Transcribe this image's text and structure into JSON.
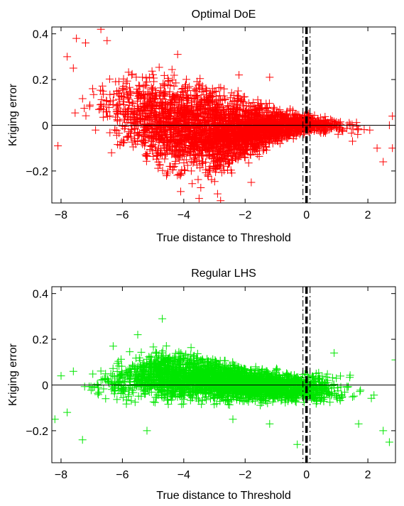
{
  "chart_data": [
    {
      "type": "scatter",
      "title": "Optimal DoE",
      "xlabel": "True distance to Threshold",
      "ylabel": "Kriging error",
      "xlim": [
        -8.3,
        2.9
      ],
      "ylim": [
        -0.34,
        0.43
      ],
      "xticks": [
        -8,
        -6,
        -4,
        -2,
        0,
        2
      ],
      "yticks": [
        -0.2,
        0,
        0.2,
        0.4
      ],
      "xtick_labels": [
        "−8",
        "−6",
        "−4",
        "−2",
        "0",
        "2"
      ],
      "ytick_labels": [
        "−0.2",
        "0",
        "0.2",
        "0.4"
      ],
      "marker": "+",
      "marker_color": "#ff0000",
      "zero_line": 0,
      "threshold_x": 0,
      "grid": false,
      "legend": "none",
      "envelope": [
        {
          "x": -8.1,
          "lo": -0.02,
          "hi": 0.06
        },
        {
          "x": -7.0,
          "lo": -0.07,
          "hi": 0.28
        },
        {
          "x": -6.0,
          "lo": -0.12,
          "hi": 0.26
        },
        {
          "x": -5.0,
          "lo": -0.2,
          "hi": 0.25
        },
        {
          "x": -4.0,
          "lo": -0.25,
          "hi": 0.24
        },
        {
          "x": -3.0,
          "lo": -0.26,
          "hi": 0.2
        },
        {
          "x": -2.0,
          "lo": -0.18,
          "hi": 0.13
        },
        {
          "x": -1.0,
          "lo": -0.09,
          "hi": 0.08
        },
        {
          "x": 0.0,
          "lo": -0.04,
          "hi": 0.06
        },
        {
          "x": 1.0,
          "lo": -0.04,
          "hi": 0.03
        },
        {
          "x": 2.0,
          "lo": -0.05,
          "hi": 0.02
        },
        {
          "x": 2.7,
          "lo": -0.07,
          "hi": 0.01
        }
      ],
      "outliers": [
        {
          "x": -6.7,
          "y": 0.42
        },
        {
          "x": -7.5,
          "y": 0.38
        },
        {
          "x": -7.8,
          "y": 0.3
        },
        {
          "x": -7.6,
          "y": 0.25
        },
        {
          "x": -6.5,
          "y": 0.37
        },
        {
          "x": -7.2,
          "y": 0.36
        },
        {
          "x": -4.2,
          "y": 0.31
        },
        {
          "x": -4.1,
          "y": -0.29
        },
        {
          "x": -3.5,
          "y": -0.32
        },
        {
          "x": -2.8,
          "y": -0.33
        },
        {
          "x": -2.9,
          "y": -0.3
        },
        {
          "x": -2.2,
          "y": 0.22
        },
        {
          "x": -1.2,
          "y": 0.21
        },
        {
          "x": -1.8,
          "y": -0.25
        },
        {
          "x": -8.1,
          "y": -0.09
        },
        {
          "x": 2.5,
          "y": -0.16
        },
        {
          "x": 2.8,
          "y": -0.1
        },
        {
          "x": 2.7,
          "y": 0.0
        },
        {
          "x": 2.3,
          "y": -0.1
        },
        {
          "x": 2.8,
          "y": 0.04
        },
        {
          "x": 1.5,
          "y": -0.07
        }
      ]
    },
    {
      "type": "scatter",
      "title": "Regular LHS",
      "xlabel": "True distance to Threshold",
      "ylabel": "Kriging error",
      "xlim": [
        -8.3,
        2.9
      ],
      "ylim": [
        -0.34,
        0.43
      ],
      "xticks": [
        -8,
        -6,
        -4,
        -2,
        0,
        2
      ],
      "yticks": [
        -0.2,
        0,
        0.2,
        0.4
      ],
      "xtick_labels": [
        "−8",
        "−6",
        "−4",
        "−2",
        "0",
        "2"
      ],
      "ytick_labels": [
        "−0.2",
        "0",
        "0.2",
        "0.4"
      ],
      "marker": "+",
      "marker_color": "#00e600",
      "zero_line": 0,
      "threshold_x": 0,
      "grid": false,
      "legend": "none",
      "envelope": [
        {
          "x": -8.1,
          "lo": -0.05,
          "hi": 0.03
        },
        {
          "x": -7.0,
          "lo": -0.09,
          "hi": 0.08
        },
        {
          "x": -6.0,
          "lo": -0.09,
          "hi": 0.13
        },
        {
          "x": -5.0,
          "lo": -0.09,
          "hi": 0.17
        },
        {
          "x": -4.0,
          "lo": -0.09,
          "hi": 0.17
        },
        {
          "x": -3.0,
          "lo": -0.08,
          "hi": 0.12
        },
        {
          "x": -2.0,
          "lo": -0.08,
          "hi": 0.09
        },
        {
          "x": -1.0,
          "lo": -0.09,
          "hi": 0.07
        },
        {
          "x": 0.0,
          "lo": -0.09,
          "hi": 0.06
        },
        {
          "x": 1.0,
          "lo": -0.1,
          "hi": 0.06
        },
        {
          "x": 2.0,
          "lo": -0.08,
          "hi": 0.05
        },
        {
          "x": 2.7,
          "lo": -0.04,
          "hi": 0.02
        }
      ],
      "outliers": [
        {
          "x": -4.7,
          "y": 0.29
        },
        {
          "x": -5.5,
          "y": 0.22
        },
        {
          "x": -7.3,
          "y": -0.24
        },
        {
          "x": -8.2,
          "y": -0.15
        },
        {
          "x": -7.8,
          "y": -0.12
        },
        {
          "x": -5.2,
          "y": -0.2
        },
        {
          "x": -6.3,
          "y": 0.17
        },
        {
          "x": -7.6,
          "y": 0.06
        },
        {
          "x": -1.2,
          "y": -0.17
        },
        {
          "x": -0.3,
          "y": -0.26
        },
        {
          "x": 2.5,
          "y": -0.2
        },
        {
          "x": 2.7,
          "y": -0.25
        },
        {
          "x": 2.9,
          "y": 0.11
        },
        {
          "x": 0.9,
          "y": 0.14
        },
        {
          "x": -2.4,
          "y": -0.15
        },
        {
          "x": -8.0,
          "y": 0.04
        },
        {
          "x": 1.7,
          "y": -0.17
        }
      ]
    }
  ]
}
